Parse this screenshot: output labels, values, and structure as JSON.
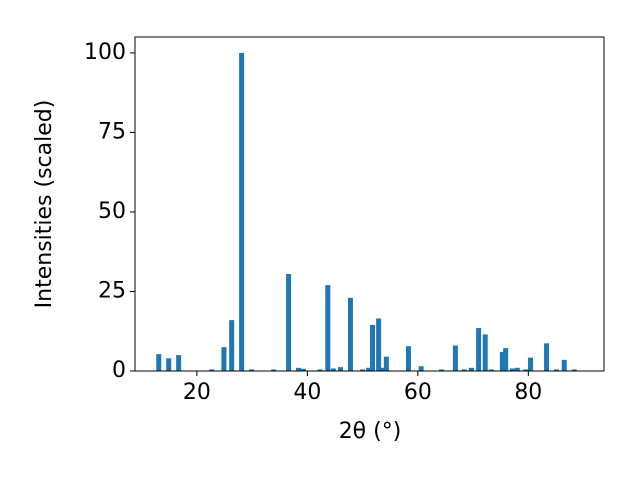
{
  "chart_data": {
    "type": "bar",
    "xlabel": "2θ (°)",
    "ylabel": "Intensities (scaled)",
    "x": [
      13.1,
      14.9,
      16.7,
      22.7,
      24.9,
      26.3,
      28.1,
      29.9,
      33.9,
      36.6,
      38.4,
      39.3,
      42.3,
      43.7,
      44.7,
      46.0,
      47.8,
      50.0,
      51.1,
      51.8,
      52.9,
      53.6,
      54.3,
      58.3,
      60.6,
      64.3,
      66.8,
      68.4,
      69.7,
      71.0,
      72.2,
      73.3,
      75.3,
      75.9,
      77.1,
      78.0,
      79.5,
      80.4,
      83.3,
      85.1,
      86.5,
      88.3
    ],
    "values": [
      5.3,
      4,
      5,
      0.5,
      7.5,
      16,
      100,
      0.5,
      0.5,
      30.5,
      1,
      0.7,
      0.5,
      27,
      0.8,
      1.2,
      23,
      0.5,
      1,
      14.5,
      16.5,
      1,
      4.5,
      7.8,
      1.5,
      0.5,
      8,
      0.5,
      1,
      13.5,
      11.5,
      0.5,
      6,
      7.2,
      0.8,
      1,
      0.5,
      4.2,
      8.7,
      0.5,
      3.5,
      0.5
    ],
    "color": "#1f77b4",
    "xlim": [
      8.8,
      93.7
    ],
    "ylim": [
      0,
      105
    ],
    "xticks": [
      20,
      40,
      60,
      80
    ],
    "yticks": [
      0,
      25,
      50,
      75,
      100
    ],
    "grid": false
  }
}
